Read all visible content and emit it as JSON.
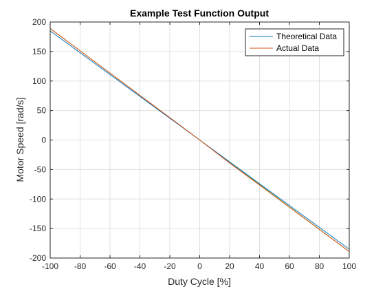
{
  "chart_data": {
    "type": "line",
    "title": "Example Test Function Output",
    "xlabel": "Duty Cycle [%]",
    "ylabel": "Motor Speed [rad/s]",
    "xlim": [
      -100,
      100
    ],
    "ylim": [
      -200,
      200
    ],
    "xticks": [
      -100,
      -80,
      -60,
      -40,
      -20,
      0,
      20,
      40,
      60,
      80,
      100
    ],
    "yticks": [
      -200,
      -150,
      -100,
      -50,
      0,
      50,
      100,
      150,
      200
    ],
    "grid": true,
    "legend_position": "top-right",
    "series": [
      {
        "name": "Theoretical Data",
        "color": "#0072BD",
        "x": [
          -100,
          0,
          100
        ],
        "y": [
          185,
          0,
          -185
        ]
      },
      {
        "name": "Actual Data",
        "color": "#D95319",
        "x": [
          -100,
          -20,
          0,
          20,
          100
        ],
        "y": [
          189,
          38,
          0,
          -39,
          -189
        ]
      }
    ],
    "overlay_line": {
      "color": "#77AC30",
      "x": [
        -100,
        100
      ],
      "y": [
        189,
        -189
      ]
    }
  }
}
